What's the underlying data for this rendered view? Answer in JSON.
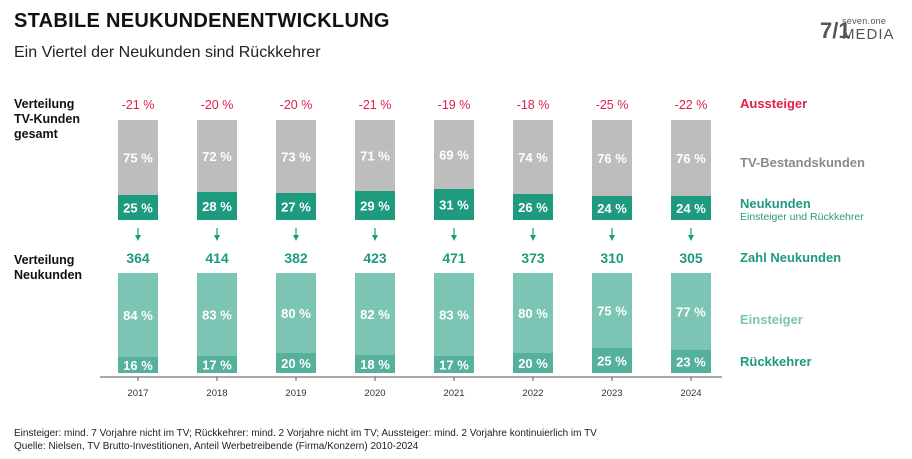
{
  "header": {
    "title": "STABILE NEUKUNDENENTWICKLUNG",
    "subtitle": "Ein Viertel der Neukunden sind Rückkehrer"
  },
  "logo": {
    "mark": "7/1",
    "top": "seven.one",
    "bottom": "MEDIA"
  },
  "labels": {
    "left_top_line1": "Verteilung",
    "left_top_line2": "TV-Kunden",
    "left_top_line3": "gesamt",
    "left_bottom_line1": "Verteilung",
    "left_bottom_line2": "Neukunden",
    "aussteiger": "Aussteiger",
    "bestand": "TV-Bestandskunden",
    "neukunden": "Neukunden",
    "neukunden_sub": "Einsteiger und Rückkehrer",
    "zahl": "Zahl Neukunden",
    "einsteiger": "Einsteiger",
    "rueckkehrer": "Rückkehrer"
  },
  "footer": {
    "line1": "Einsteiger: mind. 7 Vorjahre nicht im TV; Rückkehrer: mind. 2 Vorjahre nicht im TV; Aussteiger: mind.  2 Vorjahre kontinuierlich im TV",
    "line2": "Quelle: Nielsen, TV Brutto-Investitionen, Anteil Werbetreibende (Firma/Konzern) 2010-2024"
  },
  "colors": {
    "red": "#e0204a",
    "gray": "#bdbdbd",
    "gray_text": "#8a8a8a",
    "dark_green": "#1e9a7f",
    "light_green": "#7cc4b4",
    "axis": "#555555"
  },
  "chart_data": {
    "type": "bar",
    "categories": [
      "2017",
      "2018",
      "2019",
      "2020",
      "2021",
      "2022",
      "2023",
      "2024"
    ],
    "aussteiger": [
      "-21 %",
      "-20 %",
      "-20 %",
      "-21 %",
      "-19 %",
      "-18 %",
      "-25 %",
      "-22 %"
    ],
    "bestand": [
      75,
      72,
      73,
      71,
      69,
      74,
      76,
      76
    ],
    "neukunden": [
      25,
      28,
      27,
      29,
      31,
      26,
      24,
      24
    ],
    "zahl_neukunden": [
      364,
      414,
      382,
      423,
      471,
      373,
      310,
      305
    ],
    "einsteiger": [
      84,
      83,
      80,
      82,
      83,
      80,
      75,
      77
    ],
    "rueckkehrer": [
      16,
      17,
      20,
      18,
      17,
      20,
      25,
      23
    ],
    "unit_label": " %"
  }
}
